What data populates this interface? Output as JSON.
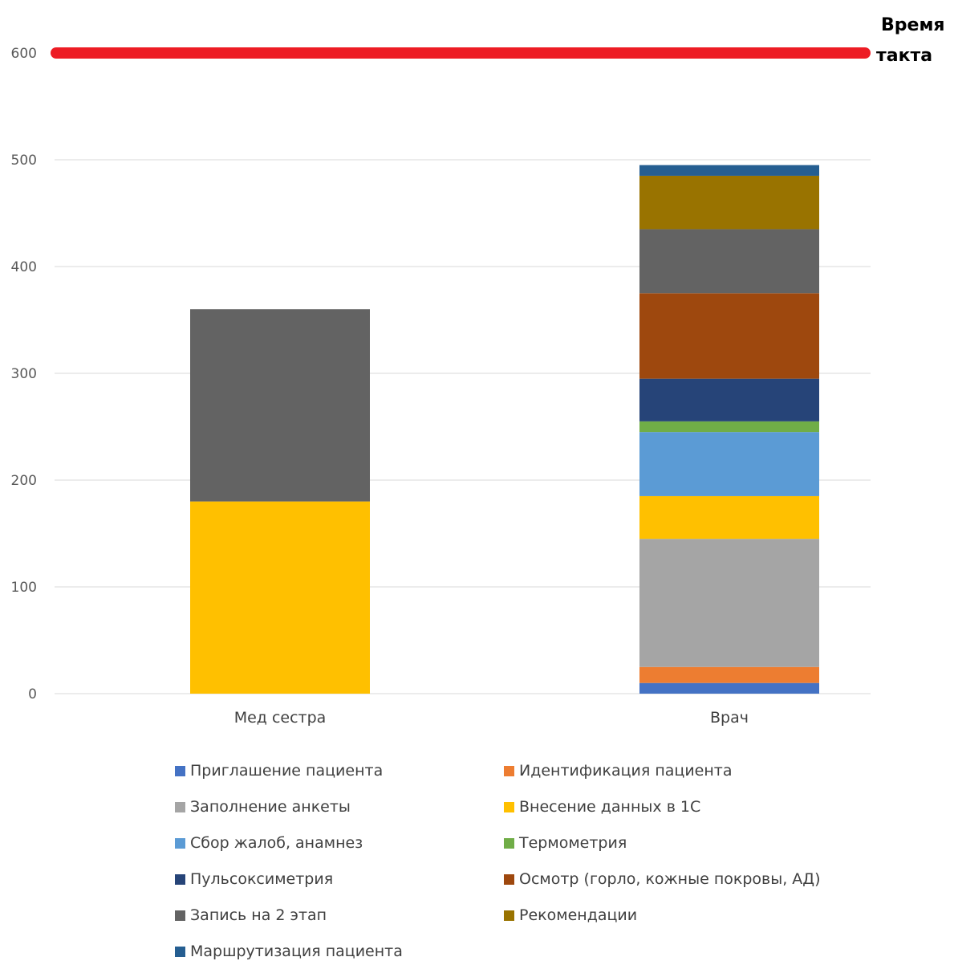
{
  "chart_data": {
    "type": "bar",
    "stacked": true,
    "categories": [
      "Мед сестра",
      "Врач"
    ],
    "yticks": [
      0,
      100,
      200,
      300,
      400,
      500,
      600
    ],
    "ylim": [
      0,
      600
    ],
    "grid": true,
    "legend_position": "bottom",
    "takt_time": {
      "value": 600,
      "label_line1": "Время",
      "label_line2": "такта",
      "color": "#ED1C24"
    },
    "series": [
      {
        "name": "Приглашение пациента",
        "color": "#4472C4",
        "values": [
          0,
          10
        ]
      },
      {
        "name": "Идентификация пациента",
        "color": "#ED7D31",
        "values": [
          0,
          15
        ]
      },
      {
        "name": "Заполнение анкеты",
        "color": "#A5A5A5",
        "values": [
          0,
          120
        ]
      },
      {
        "name": "Внесение данных в 1С",
        "color": "#FFC000",
        "values": [
          180,
          40
        ]
      },
      {
        "name": "Сбор жалоб, анамнез",
        "color": "#5B9BD5",
        "values": [
          0,
          60
        ]
      },
      {
        "name": "Термометрия",
        "color": "#70AD47",
        "values": [
          0,
          10
        ]
      },
      {
        "name": "Пульсоксиметрия",
        "color": "#264478",
        "values": [
          0,
          40
        ]
      },
      {
        "name": "Осмотр (горло, кожные покровы, АД)",
        "color": "#9E480E",
        "values": [
          0,
          80
        ]
      },
      {
        "name": "Запись на 2 этап",
        "color": "#636363",
        "values": [
          180,
          60
        ]
      },
      {
        "name": "Рекомендации",
        "color": "#997300",
        "values": [
          0,
          50
        ]
      },
      {
        "name": "Маршрутизация пациента",
        "color": "#255E91",
        "values": [
          0,
          10
        ]
      }
    ]
  }
}
